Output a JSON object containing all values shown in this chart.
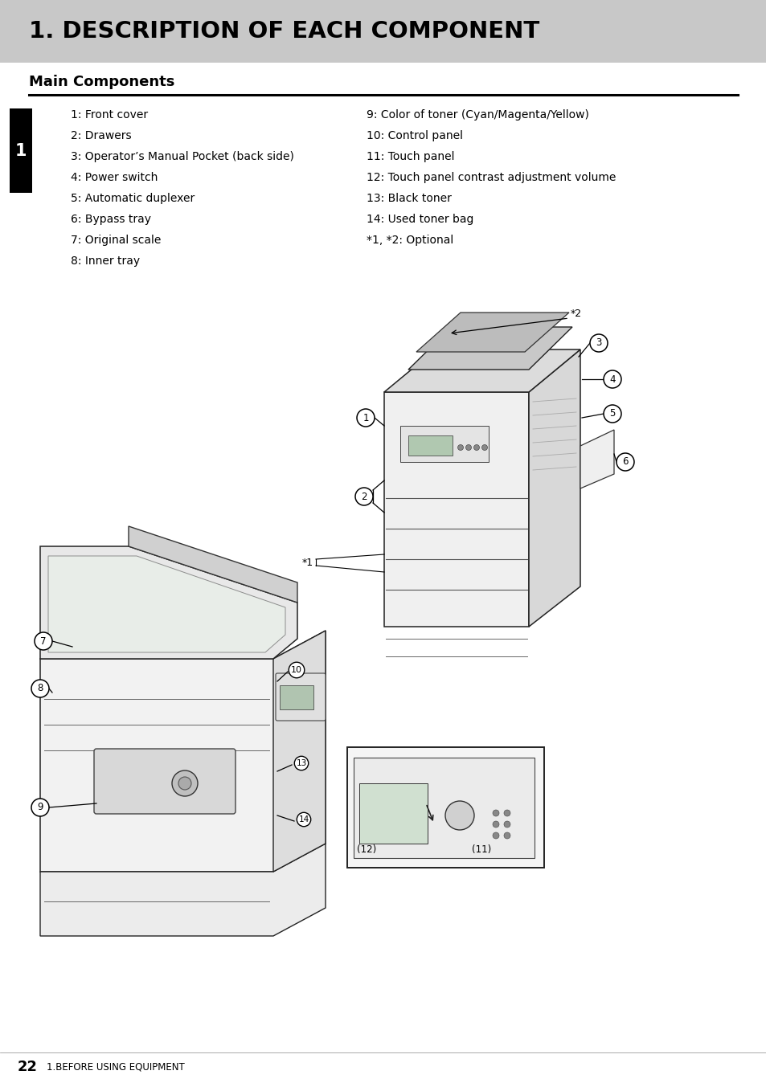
{
  "page_bg": "#ffffff",
  "header_bg": "#c8c8c8",
  "header_text": "1. DESCRIPTION OF EACH COMPONENT",
  "header_text_color": "#000000",
  "section_title": "Main Components",
  "tab_bg": "#000000",
  "tab_text": "1",
  "tab_text_color": "#ffffff",
  "divider_color": "#000000",
  "left_items": [
    "1: Front cover",
    "2: Drawers",
    "3: Operator’s Manual Pocket (back side)",
    "4: Power switch",
    "5: Automatic duplexer",
    "6: Bypass tray",
    "7: Original scale",
    "8: Inner tray"
  ],
  "right_items": [
    "9: Color of toner (Cyan/Magenta/Yellow)",
    "10: Control panel",
    "11: Touch panel",
    "12: Touch panel contrast adjustment volume",
    "13: Black toner",
    "14: Used toner bag",
    "*1, *2: Optional",
    ""
  ],
  "footer_page": "22",
  "footer_text": "1.BEFORE USING EQUIPMENT"
}
